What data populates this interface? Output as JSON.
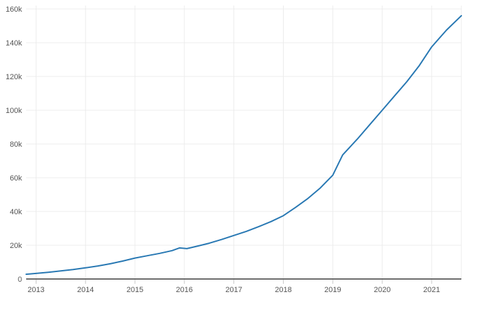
{
  "chart": {
    "background": "#ffffff",
    "line_color": "#2878b3",
    "grid_color": "#ececec",
    "axis_color": "#3b3b3b",
    "tick_color": "#c9c9c9",
    "label_color": "#555555"
  },
  "chart_data": {
    "type": "line",
    "title": "",
    "xlabel": "",
    "ylabel": "",
    "grid": true,
    "legend": false,
    "x_range": [
      2012.8,
      2021.6
    ],
    "y_range": [
      0,
      160000
    ],
    "x_ticks": [
      {
        "value": 2013,
        "label": "2013"
      },
      {
        "value": 2014,
        "label": "2014"
      },
      {
        "value": 2015,
        "label": "2015"
      },
      {
        "value": 2016,
        "label": "2016"
      },
      {
        "value": 2017,
        "label": "2017"
      },
      {
        "value": 2018,
        "label": "2018"
      },
      {
        "value": 2019,
        "label": "2019"
      },
      {
        "value": 2020,
        "label": "2020"
      },
      {
        "value": 2021,
        "label": "2021"
      }
    ],
    "y_ticks": [
      {
        "value": 0,
        "label": "0"
      },
      {
        "value": 20000,
        "label": "20k"
      },
      {
        "value": 40000,
        "label": "40k"
      },
      {
        "value": 60000,
        "label": "60k"
      },
      {
        "value": 80000,
        "label": "80k"
      },
      {
        "value": 100000,
        "label": "100k"
      },
      {
        "value": 120000,
        "label": "120k"
      },
      {
        "value": 140000,
        "label": "140k"
      },
      {
        "value": 160000,
        "label": "160k"
      }
    ],
    "series": [
      {
        "name": "series-1",
        "x": [
          2012.8,
          2013,
          2013.25,
          2013.5,
          2013.75,
          2014,
          2014.25,
          2014.5,
          2014.75,
          2015,
          2015.25,
          2015.5,
          2015.75,
          2015.9,
          2016.05,
          2016.25,
          2016.5,
          2016.75,
          2017,
          2017.25,
          2017.5,
          2017.75,
          2018,
          2018.25,
          2018.5,
          2018.75,
          2019,
          2019.2,
          2019.5,
          2019.75,
          2020,
          2020.25,
          2020.5,
          2020.75,
          2021,
          2021.3,
          2021.6
        ],
        "y": [
          2800,
          3300,
          4000,
          4800,
          5600,
          6600,
          7700,
          9000,
          10600,
          12400,
          13800,
          15200,
          16800,
          18400,
          18000,
          19400,
          21200,
          23400,
          25800,
          28200,
          31000,
          34000,
          37500,
          42500,
          47800,
          54000,
          61500,
          73500,
          83000,
          91500,
          100000,
          108500,
          117000,
          126500,
          137500,
          147500,
          156000
        ]
      }
    ]
  }
}
